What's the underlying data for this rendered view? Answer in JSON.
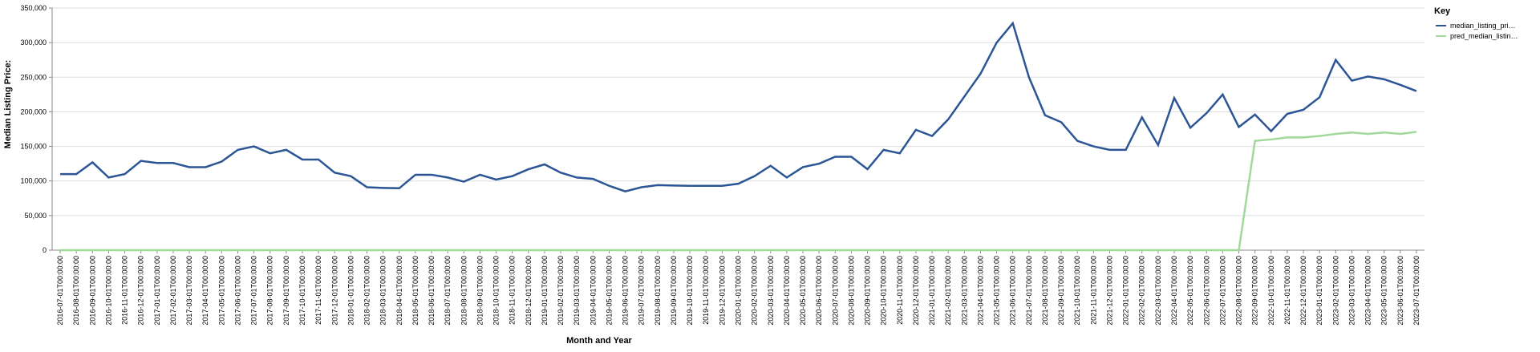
{
  "chart_data": {
    "type": "line",
    "x_label": "Month and Year",
    "y_label": "Median Listing Price:",
    "legend_title": "Key",
    "legend_position": "right",
    "grid": true,
    "categories": [
      "2016-07-01T00:00:00",
      "2016-08-01T00:00:00",
      "2016-09-01T00:00:00",
      "2016-10-01T00:00:00",
      "2016-11-01T00:00:00",
      "2016-12-01T00:00:00",
      "2017-01-01T00:00:00",
      "2017-02-01T00:00:00",
      "2017-03-01T00:00:00",
      "2017-04-01T00:00:00",
      "2017-05-01T00:00:00",
      "2017-06-01T00:00:00",
      "2017-07-01T00:00:00",
      "2017-08-01T00:00:00",
      "2017-09-01T00:00:00",
      "2017-10-01T00:00:00",
      "2017-11-01T00:00:00",
      "2017-12-01T00:00:00",
      "2018-01-01T00:00:00",
      "2018-02-01T00:00:00",
      "2018-03-01T00:00:00",
      "2018-04-01T00:00:00",
      "2018-05-01T00:00:00",
      "2018-06-01T00:00:00",
      "2018-07-01T00:00:00",
      "2018-08-01T00:00:00",
      "2018-09-01T00:00:00",
      "2018-10-01T00:00:00",
      "2018-11-01T00:00:00",
      "2018-12-01T00:00:00",
      "2019-01-01T00:00:00",
      "2019-02-01T00:00:00",
      "2019-03-01T00:00:00",
      "2019-04-01T00:00:00",
      "2019-05-01T00:00:00",
      "2019-06-01T00:00:00",
      "2019-07-01T00:00:00",
      "2019-08-01T00:00:00",
      "2019-09-01T00:00:00",
      "2019-10-01T00:00:00",
      "2019-11-01T00:00:00",
      "2019-12-01T00:00:00",
      "2020-01-01T00:00:00",
      "2020-02-01T00:00:00",
      "2020-03-01T00:00:00",
      "2020-04-01T00:00:00",
      "2020-05-01T00:00:00",
      "2020-06-01T00:00:00",
      "2020-07-01T00:00:00",
      "2020-08-01T00:00:00",
      "2020-09-01T00:00:00",
      "2020-10-01T00:00:00",
      "2020-11-01T00:00:00",
      "2020-12-01T00:00:00",
      "2021-01-01T00:00:00",
      "2021-02-01T00:00:00",
      "2021-03-01T00:00:00",
      "2021-04-01T00:00:00",
      "2021-05-01T00:00:00",
      "2021-06-01T00:00:00",
      "2021-07-01T00:00:00",
      "2021-08-01T00:00:00",
      "2021-09-01T00:00:00",
      "2021-10-01T00:00:00",
      "2021-11-01T00:00:00",
      "2021-12-01T00:00:00",
      "2022-01-01T00:00:00",
      "2022-02-01T00:00:00",
      "2022-03-01T00:00:00",
      "2022-04-01T00:00:00",
      "2022-05-01T00:00:00",
      "2022-06-01T00:00:00",
      "2022-07-01T00:00:00",
      "2022-08-01T00:00:00",
      "2022-09-01T00:00:00",
      "2022-10-01T00:00:00",
      "2022-11-01T00:00:00",
      "2022-12-01T00:00:00",
      "2023-01-01T00:00:00",
      "2023-02-01T00:00:00",
      "2023-03-01T00:00:00",
      "2023-04-01T00:00:00",
      "2023-05-01T00:00:00",
      "2023-06-01T00:00:00",
      "2023-07-01T00:00:00"
    ],
    "series": [
      {
        "name": "median_listing_pri…",
        "color": "#2c5596",
        "values": [
          110000,
          110000,
          127000,
          105000,
          110000,
          129000,
          126000,
          126000,
          120000,
          120000,
          128000,
          145000,
          150000,
          140000,
          145000,
          131000,
          131000,
          112000,
          107000,
          91000,
          90000,
          89500,
          109000,
          109000,
          105000,
          99000,
          109000,
          102000,
          107000,
          117000,
          124000,
          112000,
          105000,
          103000,
          93000,
          85000,
          91000,
          94000,
          93500,
          93000,
          93000,
          93000,
          96000,
          107000,
          122000,
          105000,
          120000,
          125000,
          135000,
          135000,
          117000,
          145000,
          140000,
          174000,
          165000,
          189000,
          222000,
          255000,
          300000,
          328000,
          250000,
          195000,
          185000,
          158000,
          150000,
          145000,
          145000,
          192000,
          152000,
          220000,
          177000,
          198000,
          225000,
          178000,
          196000,
          172000,
          197000,
          203000,
          221000,
          275000,
          245000,
          251000,
          247000,
          239000,
          230000
        ]
      },
      {
        "name": "pred_median_listin…",
        "color": "#a1d99b",
        "values": [
          0,
          0,
          0,
          0,
          0,
          0,
          0,
          0,
          0,
          0,
          0,
          0,
          0,
          0,
          0,
          0,
          0,
          0,
          0,
          0,
          0,
          0,
          0,
          0,
          0,
          0,
          0,
          0,
          0,
          0,
          0,
          0,
          0,
          0,
          0,
          0,
          0,
          0,
          0,
          0,
          0,
          0,
          0,
          0,
          0,
          0,
          0,
          0,
          0,
          0,
          0,
          0,
          0,
          0,
          0,
          0,
          0,
          0,
          0,
          0,
          0,
          0,
          0,
          0,
          0,
          0,
          0,
          0,
          0,
          0,
          0,
          0,
          0,
          0,
          158000,
          160000,
          163000,
          163000,
          165000,
          168000,
          170000,
          168000,
          170000,
          168000,
          171000
        ]
      }
    ],
    "ylim": [
      0,
      350000
    ],
    "yticks": [
      0,
      {
        "value": 50000,
        "label": "50,000"
      },
      {
        "value": 100000,
        "label": "100,000"
      },
      {
        "value": 150000,
        "label": "150,000"
      },
      {
        "value": 200000,
        "label": "200,000"
      },
      {
        "value": 250000,
        "label": "250,000"
      },
      {
        "value": 300000,
        "label": "300,000"
      },
      {
        "value": 350000,
        "label": "350,000"
      }
    ]
  }
}
